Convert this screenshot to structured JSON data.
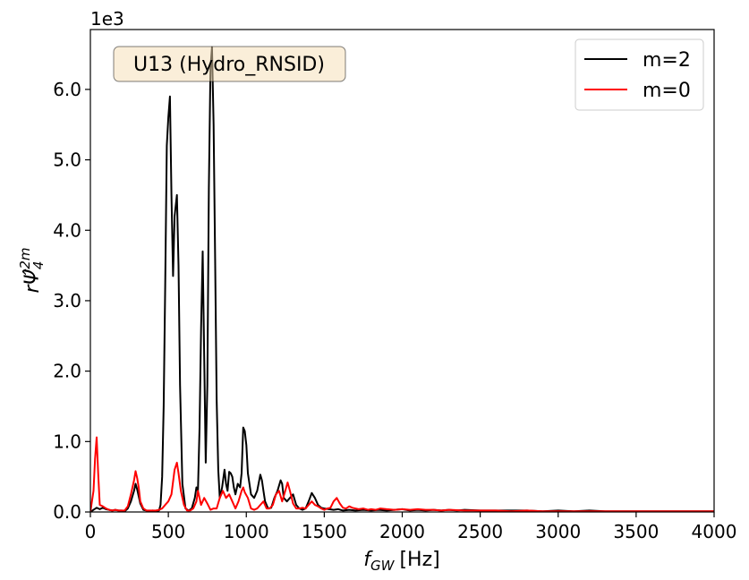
{
  "chart_data": {
    "type": "line",
    "title": "",
    "annotation": "U13 (Hydro_RNSID)",
    "offset_label": "1e3",
    "xlabel_var": "f",
    "xlabel_sub": "GW",
    "xlabel_unit": "[Hz]",
    "ylabel_main": "rΨ̂",
    "ylabel_sub": "4",
    "ylabel_sup": "2m",
    "xlim": [
      0,
      4000
    ],
    "ylim": [
      0,
      6.85
    ],
    "xticks": [
      0,
      500,
      1000,
      1500,
      2000,
      2500,
      3000,
      3500,
      4000
    ],
    "xtick_labels": [
      "0",
      "500",
      "1000",
      "1500",
      "2000",
      "2500",
      "3000",
      "3500",
      "4000"
    ],
    "yticks": [
      0,
      1,
      2,
      3,
      4,
      5,
      6
    ],
    "ytick_labels": [
      "0.0",
      "1.0",
      "2.0",
      "3.0",
      "4.0",
      "5.0",
      "6.0"
    ],
    "grid": false,
    "legend_position": "top-right",
    "series": [
      {
        "name": "m=2",
        "color": "#000000",
        "points": [
          [
            0,
            0.0
          ],
          [
            20,
            0.03
          ],
          [
            40,
            0.06
          ],
          [
            60,
            0.04
          ],
          [
            80,
            0.06
          ],
          [
            100,
            0.04
          ],
          [
            120,
            0.03
          ],
          [
            140,
            0.02
          ],
          [
            160,
            0.03
          ],
          [
            180,
            0.02
          ],
          [
            200,
            0.02
          ],
          [
            220,
            0.01
          ],
          [
            240,
            0.05
          ],
          [
            260,
            0.15
          ],
          [
            280,
            0.3
          ],
          [
            290,
            0.4
          ],
          [
            300,
            0.32
          ],
          [
            320,
            0.12
          ],
          [
            340,
            0.03
          ],
          [
            360,
            0.02
          ],
          [
            380,
            0.01
          ],
          [
            400,
            0.02
          ],
          [
            420,
            0.01
          ],
          [
            440,
            0.02
          ],
          [
            450,
            0.1
          ],
          [
            460,
            0.5
          ],
          [
            470,
            1.5
          ],
          [
            480,
            3.2
          ],
          [
            490,
            5.2
          ],
          [
            500,
            5.6
          ],
          [
            510,
            5.9
          ],
          [
            520,
            4.5
          ],
          [
            530,
            3.35
          ],
          [
            540,
            4.2
          ],
          [
            555,
            4.5
          ],
          [
            565,
            3.5
          ],
          [
            575,
            1.8
          ],
          [
            590,
            0.4
          ],
          [
            610,
            0.05
          ],
          [
            630,
            0.02
          ],
          [
            650,
            0.05
          ],
          [
            670,
            0.2
          ],
          [
            680,
            0.35
          ],
          [
            690,
            0.3
          ],
          [
            700,
            1.2
          ],
          [
            710,
            2.6
          ],
          [
            720,
            3.7
          ],
          [
            730,
            2.2
          ],
          [
            740,
            0.7
          ],
          [
            750,
            1.8
          ],
          [
            760,
            4.6
          ],
          [
            770,
            6.3
          ],
          [
            780,
            6.6
          ],
          [
            790,
            5.5
          ],
          [
            800,
            3.6
          ],
          [
            810,
            1.6
          ],
          [
            820,
            0.6
          ],
          [
            830,
            0.2
          ],
          [
            845,
            0.35
          ],
          [
            860,
            0.6
          ],
          [
            870,
            0.4
          ],
          [
            880,
            0.3
          ],
          [
            890,
            0.57
          ],
          [
            900,
            0.55
          ],
          [
            910,
            0.5
          ],
          [
            920,
            0.35
          ],
          [
            930,
            0.25
          ],
          [
            945,
            0.4
          ],
          [
            960,
            0.35
          ],
          [
            970,
            0.55
          ],
          [
            980,
            1.2
          ],
          [
            990,
            1.15
          ],
          [
            1000,
            0.95
          ],
          [
            1010,
            0.55
          ],
          [
            1030,
            0.25
          ],
          [
            1050,
            0.2
          ],
          [
            1070,
            0.3
          ],
          [
            1090,
            0.53
          ],
          [
            1100,
            0.45
          ],
          [
            1110,
            0.3
          ],
          [
            1120,
            0.15
          ],
          [
            1140,
            0.05
          ],
          [
            1160,
            0.06
          ],
          [
            1180,
            0.2
          ],
          [
            1200,
            0.3
          ],
          [
            1220,
            0.45
          ],
          [
            1230,
            0.4
          ],
          [
            1240,
            0.2
          ],
          [
            1260,
            0.15
          ],
          [
            1280,
            0.2
          ],
          [
            1300,
            0.25
          ],
          [
            1320,
            0.1
          ],
          [
            1340,
            0.05
          ],
          [
            1360,
            0.03
          ],
          [
            1380,
            0.05
          ],
          [
            1400,
            0.15
          ],
          [
            1420,
            0.27
          ],
          [
            1440,
            0.2
          ],
          [
            1460,
            0.1
          ],
          [
            1480,
            0.06
          ],
          [
            1500,
            0.05
          ],
          [
            1530,
            0.04
          ],
          [
            1560,
            0.03
          ],
          [
            1590,
            0.04
          ],
          [
            1620,
            0.02
          ],
          [
            1660,
            0.03
          ],
          [
            1700,
            0.02
          ],
          [
            1750,
            0.03
          ],
          [
            1800,
            0.02
          ],
          [
            1850,
            0.03
          ],
          [
            1900,
            0.02
          ],
          [
            1950,
            0.03
          ],
          [
            2000,
            0.04
          ],
          [
            2050,
            0.02
          ],
          [
            2100,
            0.03
          ],
          [
            2150,
            0.02
          ],
          [
            2200,
            0.03
          ],
          [
            2250,
            0.02
          ],
          [
            2300,
            0.03
          ],
          [
            2350,
            0.02
          ],
          [
            2400,
            0.03
          ],
          [
            2500,
            0.02
          ],
          [
            2600,
            0.02
          ],
          [
            2700,
            0.02
          ],
          [
            2800,
            0.02
          ],
          [
            2900,
            0.01
          ],
          [
            3000,
            0.02
          ],
          [
            3100,
            0.01
          ],
          [
            3200,
            0.02
          ],
          [
            3300,
            0.01
          ],
          [
            3400,
            0.01
          ],
          [
            3500,
            0.01
          ],
          [
            3600,
            0.01
          ],
          [
            3700,
            0.01
          ],
          [
            3800,
            0.01
          ],
          [
            3900,
            0.01
          ],
          [
            4000,
            0.01
          ]
        ]
      },
      {
        "name": "m=0",
        "color": "#ff0000",
        "points": [
          [
            0,
            0.0
          ],
          [
            20,
            0.3
          ],
          [
            30,
            0.75
          ],
          [
            40,
            1.06
          ],
          [
            50,
            0.55
          ],
          [
            60,
            0.1
          ],
          [
            80,
            0.08
          ],
          [
            100,
            0.05
          ],
          [
            120,
            0.03
          ],
          [
            140,
            0.02
          ],
          [
            160,
            0.03
          ],
          [
            180,
            0.02
          ],
          [
            200,
            0.02
          ],
          [
            220,
            0.02
          ],
          [
            240,
            0.08
          ],
          [
            260,
            0.25
          ],
          [
            280,
            0.45
          ],
          [
            290,
            0.58
          ],
          [
            300,
            0.48
          ],
          [
            310,
            0.35
          ],
          [
            320,
            0.15
          ],
          [
            340,
            0.05
          ],
          [
            360,
            0.02
          ],
          [
            380,
            0.02
          ],
          [
            400,
            0.02
          ],
          [
            420,
            0.02
          ],
          [
            440,
            0.03
          ],
          [
            460,
            0.05
          ],
          [
            480,
            0.1
          ],
          [
            500,
            0.15
          ],
          [
            520,
            0.25
          ],
          [
            540,
            0.6
          ],
          [
            555,
            0.7
          ],
          [
            565,
            0.55
          ],
          [
            580,
            0.3
          ],
          [
            600,
            0.1
          ],
          [
            620,
            0.02
          ],
          [
            640,
            0.02
          ],
          [
            660,
            0.05
          ],
          [
            680,
            0.15
          ],
          [
            690,
            0.3
          ],
          [
            700,
            0.2
          ],
          [
            710,
            0.1
          ],
          [
            730,
            0.2
          ],
          [
            750,
            0.12
          ],
          [
            770,
            0.03
          ],
          [
            790,
            0.05
          ],
          [
            810,
            0.05
          ],
          [
            830,
            0.2
          ],
          [
            850,
            0.3
          ],
          [
            870,
            0.2
          ],
          [
            890,
            0.25
          ],
          [
            910,
            0.15
          ],
          [
            930,
            0.05
          ],
          [
            950,
            0.15
          ],
          [
            970,
            0.3
          ],
          [
            980,
            0.35
          ],
          [
            990,
            0.28
          ],
          [
            1010,
            0.2
          ],
          [
            1030,
            0.05
          ],
          [
            1050,
            0.03
          ],
          [
            1070,
            0.05
          ],
          [
            1090,
            0.1
          ],
          [
            1110,
            0.15
          ],
          [
            1130,
            0.05
          ],
          [
            1150,
            0.05
          ],
          [
            1170,
            0.1
          ],
          [
            1190,
            0.25
          ],
          [
            1210,
            0.3
          ],
          [
            1230,
            0.15
          ],
          [
            1250,
            0.3
          ],
          [
            1265,
            0.42
          ],
          [
            1280,
            0.3
          ],
          [
            1300,
            0.12
          ],
          [
            1320,
            0.05
          ],
          [
            1340,
            0.05
          ],
          [
            1360,
            0.06
          ],
          [
            1380,
            0.05
          ],
          [
            1400,
            0.1
          ],
          [
            1420,
            0.15
          ],
          [
            1440,
            0.1
          ],
          [
            1460,
            0.08
          ],
          [
            1480,
            0.05
          ],
          [
            1500,
            0.03
          ],
          [
            1520,
            0.05
          ],
          [
            1540,
            0.06
          ],
          [
            1560,
            0.15
          ],
          [
            1580,
            0.2
          ],
          [
            1600,
            0.12
          ],
          [
            1620,
            0.06
          ],
          [
            1640,
            0.05
          ],
          [
            1660,
            0.08
          ],
          [
            1680,
            0.06
          ],
          [
            1700,
            0.05
          ],
          [
            1720,
            0.04
          ],
          [
            1750,
            0.05
          ],
          [
            1780,
            0.03
          ],
          [
            1800,
            0.04
          ],
          [
            1830,
            0.03
          ],
          [
            1860,
            0.05
          ],
          [
            1900,
            0.04
          ],
          [
            1950,
            0.03
          ],
          [
            2000,
            0.04
          ],
          [
            2050,
            0.03
          ],
          [
            2100,
            0.04
          ],
          [
            2150,
            0.03
          ],
          [
            2200,
            0.03
          ],
          [
            2250,
            0.02
          ],
          [
            2300,
            0.03
          ],
          [
            2400,
            0.02
          ],
          [
            2500,
            0.02
          ],
          [
            2600,
            0.02
          ],
          [
            2700,
            0.01
          ],
          [
            2800,
            0.02
          ],
          [
            2900,
            0.01
          ],
          [
            3000,
            0.01
          ],
          [
            3100,
            0.01
          ],
          [
            3200,
            0.01
          ],
          [
            3300,
            0.01
          ],
          [
            3400,
            0.01
          ],
          [
            3500,
            0.01
          ],
          [
            3600,
            0.01
          ],
          [
            3700,
            0.01
          ],
          [
            3800,
            0.01
          ],
          [
            3900,
            0.01
          ],
          [
            4000,
            0.01
          ]
        ]
      }
    ]
  }
}
